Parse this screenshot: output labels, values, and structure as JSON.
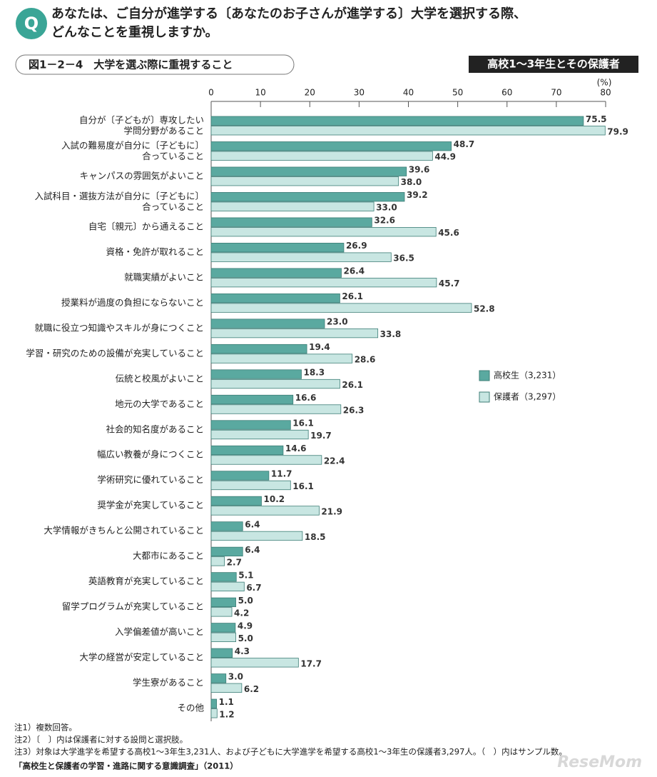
{
  "header": {
    "badge": "Q",
    "title_lines": [
      "あなたは、ご自分が進学する〔あなたのお子さんが進学する〕大学を選択する際、",
      "どんなことを重視しますか。"
    ],
    "figure_label": "図1－2－4　大学を選ぶ際に重視すること",
    "target": "高校1～3年生とその保護者"
  },
  "chart_data": {
    "type": "hbar",
    "unit": "(%)",
    "categories": [
      "自分が〔子どもが〕専攻したい\n学問分野があること",
      "入試の難易度が自分に〔子どもに〕\n合っていること",
      "キャンパスの雰囲気がよいこと",
      "入試科目・選抜方法が自分に〔子どもに〕\n合っていること",
      "自宅〔親元〕から通えること",
      "資格・免許が取れること",
      "就職実績がよいこと",
      "授業料が過度の負担にならないこと",
      "就職に役立つ知識やスキルが身につくこと",
      "学習・研究のための設備が充実していること",
      "伝統と校風がよいこと",
      "地元の大学であること",
      "社会的知名度があること",
      "幅広い教養が身につくこと",
      "学術研究に優れていること",
      "奨学金が充実していること",
      "大学情報がきちんと公開されていること",
      "大都市にあること",
      "英語教育が充実していること",
      "留学プログラムが充実していること",
      "入学偏差値が高いこと",
      "大学の経営が安定していること",
      "学生寮があること",
      "その他"
    ],
    "series": [
      {
        "name": "高校生（3,231）",
        "color": "#5aa9a0",
        "values": [
          75.5,
          48.7,
          39.6,
          39.2,
          32.6,
          26.9,
          26.4,
          26.1,
          23.0,
          19.4,
          18.3,
          16.6,
          16.1,
          14.6,
          11.7,
          10.2,
          6.4,
          6.4,
          5.1,
          5.0,
          4.9,
          4.3,
          3.0,
          1.1
        ],
        "value_labels": [
          "75.5",
          "48.7",
          "39.6",
          "39.2",
          "32.6",
          "26.9",
          "26.4",
          "26.1",
          "23.0",
          "19.4",
          "18.3",
          "16.6",
          "16.1",
          "14.6",
          "11.7",
          "10.2",
          "6.4",
          "6.4",
          "5.1",
          "5.0",
          "4.9",
          "4.3",
          "3.0",
          "1.1"
        ]
      },
      {
        "name": "保護者（3,297）",
        "color": "#c8e6e2",
        "values": [
          79.9,
          44.9,
          38.0,
          33.0,
          45.6,
          36.5,
          45.7,
          52.8,
          33.8,
          28.6,
          26.1,
          26.3,
          19.7,
          22.4,
          16.1,
          21.9,
          18.5,
          2.7,
          6.7,
          4.2,
          5.0,
          17.7,
          6.2,
          1.2
        ],
        "value_labels": [
          "79.9",
          "44.9",
          "38.0",
          "33.0",
          "45.6",
          "36.5",
          "45.7",
          "52.8",
          "33.8",
          "28.6",
          "26.1",
          "26.3",
          "19.7",
          "22.4",
          "16.1",
          "21.9",
          "18.5",
          "2.7",
          "6.7",
          "4.2",
          "5.0",
          "17.7",
          "6.2",
          "1.2"
        ]
      }
    ],
    "xlim": [
      0,
      80
    ],
    "xticks": [
      0,
      10,
      20,
      30,
      40,
      50,
      60,
      70,
      80
    ],
    "legend": "right"
  },
  "notes": [
    "注1）複数回答。",
    "注2）〔　〕内は保護者に対する設問と選択肢。",
    "注3）対象は大学進学を希望する高校1～3年生3,231人、および子どもに大学進学を希望する高校1～3年生の保護者3,297人。（　）内はサンプル数。"
  ],
  "source": "「高校生と保護者の学習・進路に関する意識調査」（2011）",
  "watermark": "ReseMom"
}
